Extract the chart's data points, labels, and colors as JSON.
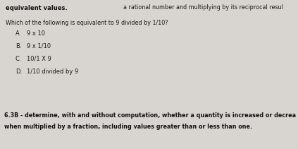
{
  "bg_color": "#d8d5d0",
  "top_left_text": "equivalent values.",
  "top_right_text": "a rational number and multiplying by its reciprocal resul",
  "question": "Which of the following is equivalent to 9 divided by 1/10?",
  "options": [
    {
      "label": "A.",
      "text": "9 x 10"
    },
    {
      "label": "B.",
      "text": "9 x 1/10"
    },
    {
      "label": "C.",
      "text": "10/1 X 9"
    },
    {
      "label": "D.",
      "text": "1/10 divided by 9"
    }
  ],
  "footer_line1": "6.3B - determine, with and without computation, whether a quantity is increased or decrea",
  "footer_line2": "when multiplied by a fraction, including values greater than or less than one.",
  "font_size_top": 6.0,
  "font_size_question": 5.8,
  "font_size_options": 6.0,
  "font_size_footer": 5.8,
  "text_color": "#1a1a1a",
  "bold_color": "#111111"
}
